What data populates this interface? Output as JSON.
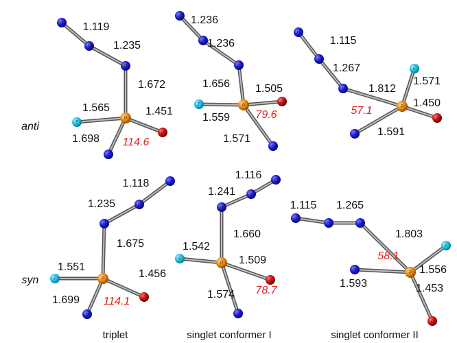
{
  "row_labels": [
    "anti",
    "syn"
  ],
  "column_labels": [
    "triplet",
    "singlet conformer I",
    "singlet conformer II"
  ],
  "molecules": [
    {
      "atoms": [
        "N",
        "N",
        "N",
        "P",
        "F",
        "O",
        "N"
      ],
      "bond_lengths": [
        "1.119",
        "1.235",
        "1.672",
        "1.565",
        "1.451",
        "1.698"
      ],
      "angle": "114.6"
    },
    {
      "atoms": [
        "N",
        "N",
        "N",
        "P",
        "F",
        "O",
        "N"
      ],
      "bond_lengths": [
        "1.236",
        "1.236",
        "1.656",
        "1.559",
        "1.505",
        "1.571"
      ],
      "angle": "79.6"
    },
    {
      "atoms": [
        "N",
        "N",
        "N",
        "P",
        "F",
        "O",
        "N"
      ],
      "bond_lengths": [
        "1.115",
        "1.267",
        "1.812",
        "1.571",
        "1.450",
        "1.591"
      ],
      "angle": "57.1"
    },
    {
      "atoms": [
        "N",
        "N",
        "N",
        "P",
        "F",
        "O",
        "N"
      ],
      "bond_lengths": [
        "1.118",
        "1.235",
        "1.675",
        "1.551",
        "1.456",
        "1.699"
      ],
      "angle": "114.1"
    },
    {
      "atoms": [
        "N",
        "N",
        "N",
        "P",
        "F",
        "O",
        "N"
      ],
      "bond_lengths": [
        "1.116",
        "1.241",
        "1.660",
        "1.542",
        "1.509",
        "1.574"
      ],
      "angle": "78.7"
    },
    {
      "atoms": [
        "N",
        "N",
        "N",
        "P",
        "F",
        "O",
        "N"
      ],
      "bond_lengths": [
        "1.115",
        "1.265",
        "1.803",
        "1.556",
        "1.453",
        "1.593"
      ],
      "angle": "58.1"
    }
  ]
}
